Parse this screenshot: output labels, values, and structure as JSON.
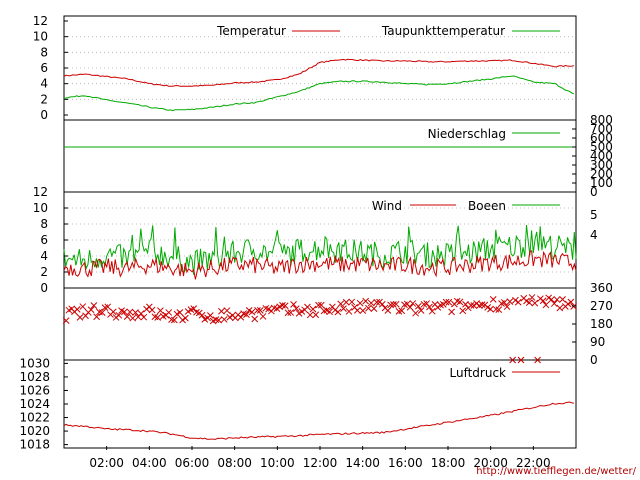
{
  "credit": "http://www.tiefflegen.de/wetter/",
  "x_ticks": [
    "02:00",
    "04:00",
    "06:00",
    "08:00",
    "10:00",
    "12:00",
    "14:00",
    "16:00",
    "18:00",
    "20:00",
    "22:00"
  ],
  "colors": {
    "red": "#cc0000",
    "green": "#00aa00",
    "grid": "#bbbbbb",
    "frame": "#000000"
  },
  "chart_data": [
    {
      "type": "line",
      "panel": "temperature",
      "x": [
        0,
        1,
        2,
        3,
        4,
        5,
        6,
        7,
        8,
        9,
        10,
        11,
        12,
        13,
        14,
        15,
        16,
        17,
        18,
        19,
        20,
        21,
        22,
        23,
        24
      ],
      "series": [
        {
          "name": "Temperatur",
          "color": "#cc0000",
          "values": [
            5.0,
            5.2,
            4.9,
            4.6,
            4.0,
            3.7,
            3.7,
            3.8,
            4.1,
            4.2,
            4.5,
            5.2,
            6.7,
            7.1,
            7.0,
            6.9,
            6.9,
            6.8,
            6.8,
            6.9,
            6.9,
            7.0,
            6.6,
            6.2,
            6.3
          ]
        },
        {
          "name": "Taupunkttemperatur",
          "color": "#00aa00",
          "values": [
            2.2,
            2.5,
            1.9,
            1.5,
            1.0,
            0.6,
            0.7,
            1.0,
            1.4,
            1.6,
            2.3,
            3.0,
            4.0,
            4.3,
            4.3,
            4.2,
            4.0,
            3.9,
            4.0,
            4.3,
            4.6,
            5.0,
            4.2,
            4.0,
            2.5
          ]
        }
      ],
      "yticks": [
        "0",
        "2",
        "4",
        "6",
        "8",
        "10",
        "12"
      ],
      "ylim": [
        0,
        12
      ]
    },
    {
      "type": "line",
      "panel": "precipitation",
      "series": [
        {
          "name": "Niederschlag",
          "color": "#00aa00",
          "values": [
            500,
            500
          ]
        }
      ],
      "yticks_right": [
        "0",
        "100",
        "200",
        "300",
        "400",
        "500",
        "600",
        "700",
        "800"
      ],
      "ylim": [
        0,
        800
      ]
    },
    {
      "type": "line",
      "panel": "wind",
      "x": [
        0,
        1,
        2,
        3,
        4,
        5,
        6,
        7,
        8,
        9,
        10,
        11,
        12,
        13,
        14,
        15,
        16,
        17,
        18,
        19,
        20,
        21,
        22,
        23,
        24
      ],
      "series": [
        {
          "name": "Wind",
          "color": "#cc0000",
          "values": [
            2.5,
            2.3,
            2.5,
            2.3,
            2.8,
            2.4,
            2.0,
            2.4,
            2.8,
            2.7,
            2.3,
            2.9,
            3.0,
            2.8,
            2.9,
            2.6,
            2.8,
            2.5,
            2.5,
            2.8,
            3.1,
            3.2,
            3.5,
            3.3,
            3.0
          ]
        },
        {
          "name": "Boeen",
          "color": "#00aa00",
          "values": [
            3.5,
            3.2,
            4.0,
            3.5,
            4.5,
            3.8,
            3.0,
            3.5,
            4.2,
            4.8,
            3.8,
            4.5,
            4.8,
            4.5,
            4.3,
            4.0,
            4.5,
            4.0,
            4.0,
            4.2,
            4.8,
            5.0,
            5.5,
            5.0,
            4.6
          ]
        }
      ],
      "yticks": [
        "0",
        "2",
        "4",
        "6",
        "8",
        "10",
        "12"
      ],
      "yticks_right": [
        "4",
        "5"
      ],
      "ylim": [
        0,
        12
      ]
    },
    {
      "type": "scatter",
      "panel": "wind-direction",
      "series": [
        {
          "marker": "x",
          "color": "#cc0000",
          "x": [
            0,
            1,
            2,
            3,
            4,
            5,
            6,
            7,
            8,
            9,
            10,
            11,
            12,
            13,
            14,
            15,
            16,
            17,
            18,
            19,
            20,
            21,
            22,
            23,
            24
          ],
          "values": [
            225,
            240,
            250,
            230,
            240,
            215,
            230,
            220,
            225,
            235,
            245,
            250,
            255,
            260,
            265,
            270,
            255,
            260,
            265,
            270,
            280,
            285,
            290,
            285,
            270
          ]
        }
      ],
      "yticks_right": [
        "0",
        "90",
        "180",
        "270",
        "360"
      ],
      "ylim": [
        0,
        360
      ]
    },
    {
      "type": "line",
      "panel": "pressure",
      "x": [
        0,
        1,
        2,
        3,
        4,
        5,
        6,
        7,
        8,
        9,
        10,
        11,
        12,
        13,
        14,
        15,
        16,
        17,
        18,
        19,
        20,
        21,
        22,
        23,
        24
      ],
      "series": [
        {
          "name": "Luftdruck",
          "color": "#cc0000",
          "values": [
            1020.9,
            1020.7,
            1020.3,
            1020.2,
            1020.0,
            1019.6,
            1019.0,
            1018.8,
            1019.0,
            1019.1,
            1019.2,
            1019.3,
            1019.5,
            1019.6,
            1019.7,
            1019.8,
            1020.3,
            1020.8,
            1021.3,
            1021.8,
            1022.3,
            1022.9,
            1023.5,
            1024.1,
            1024.2
          ]
        }
      ],
      "yticks": [
        "1018",
        "1020",
        "1022",
        "1024",
        "1026",
        "1028",
        "1030"
      ],
      "ylim": [
        1017.5,
        1030.5
      ]
    }
  ]
}
